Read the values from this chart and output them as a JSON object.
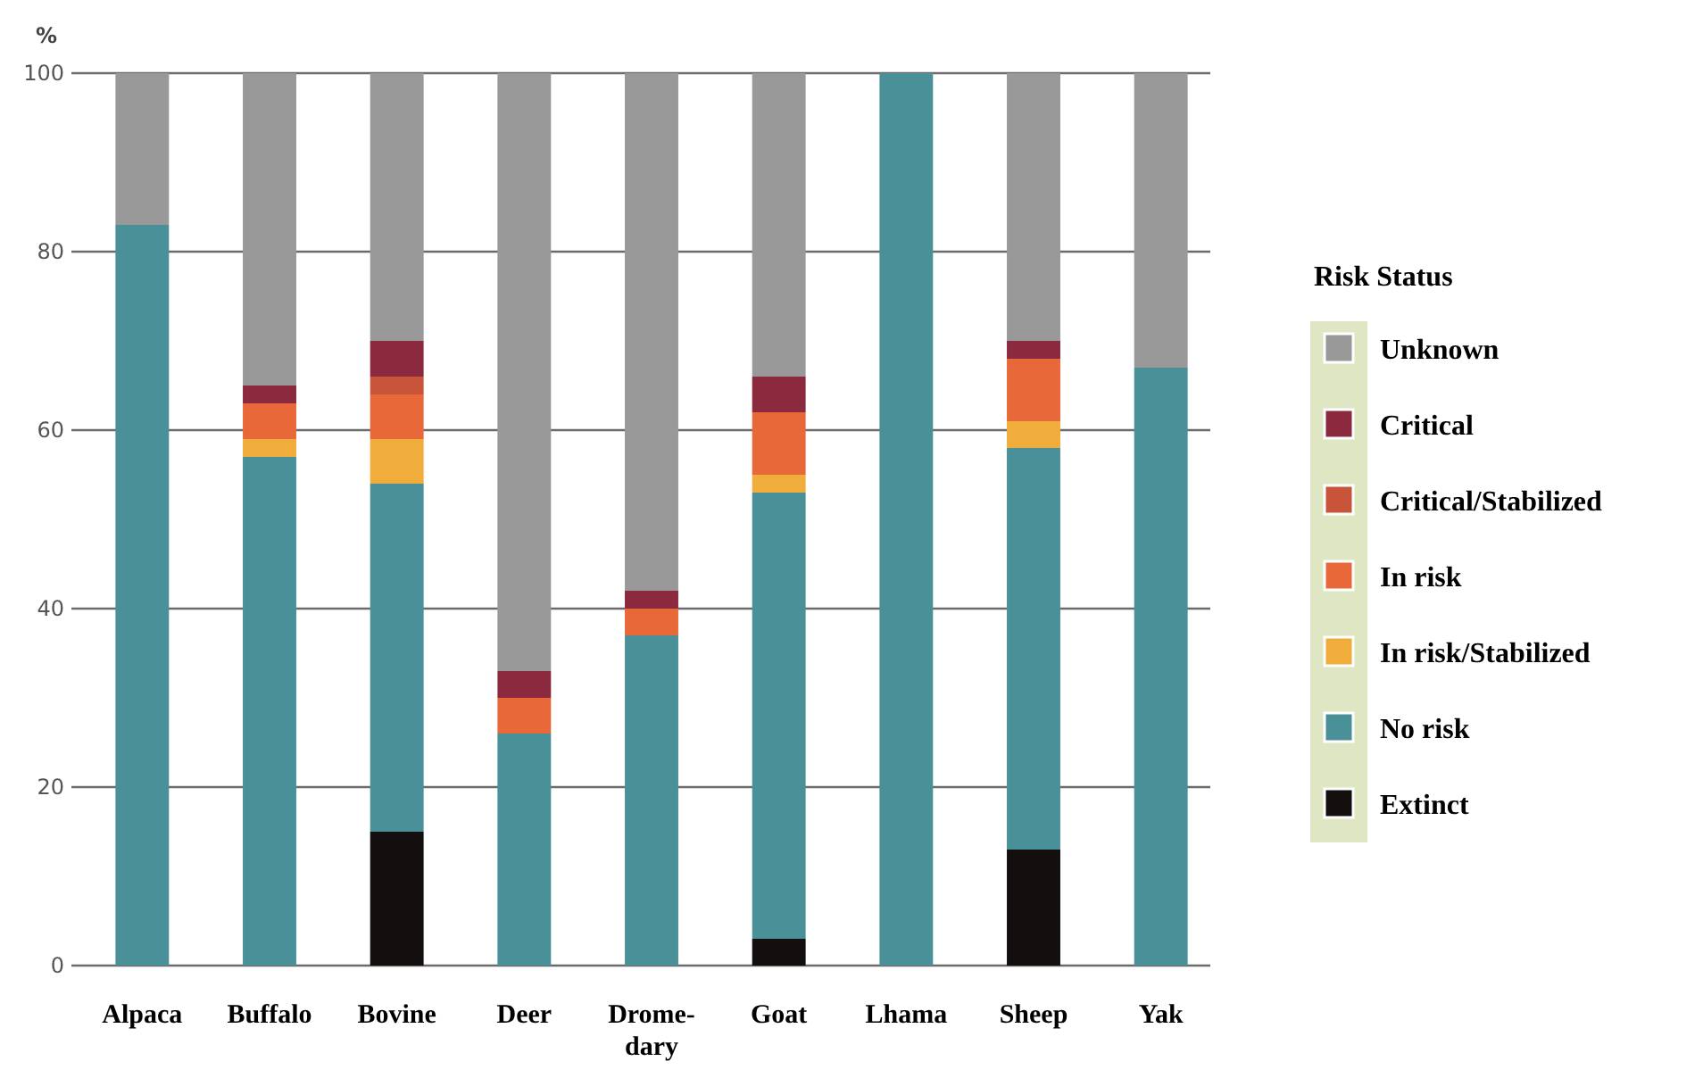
{
  "chart_data": {
    "type": "bar",
    "stacked": true,
    "ylabel": "%",
    "legend_title": "Risk Status",
    "legend": "right",
    "grid": "y",
    "categories": [
      "Alpaca",
      "Buffalo",
      "Bovine",
      "Deer",
      "Drome-dary",
      "Goat",
      "Lhama",
      "Sheep",
      "Yak"
    ],
    "ylim": [
      0,
      100
    ],
    "yticks": [
      0,
      20,
      40,
      60,
      80,
      100
    ],
    "series": [
      {
        "name": "Extinct",
        "color": "#140f0f",
        "values": [
          0,
          0,
          15,
          0,
          0,
          3,
          0,
          13,
          0
        ]
      },
      {
        "name": "No risk",
        "color": "#4a9099",
        "values": [
          83,
          57,
          39,
          26,
          37,
          50,
          100,
          45,
          67
        ]
      },
      {
        "name": "In risk/Stabilized",
        "color": "#f0ad3c",
        "values": [
          0,
          2,
          5,
          0,
          0,
          2,
          0,
          3,
          0
        ]
      },
      {
        "name": "In risk",
        "color": "#e8683a",
        "values": [
          0,
          4,
          5,
          4,
          3,
          7,
          0,
          7,
          0
        ]
      },
      {
        "name": "Critical/Stabilized",
        "color": "#c8553a",
        "values": [
          0,
          0,
          2,
          0,
          0,
          0,
          0,
          0,
          0
        ]
      },
      {
        "name": "Critical",
        "color": "#8b2a3f",
        "values": [
          0,
          2,
          4,
          3,
          2,
          4,
          0,
          2,
          0
        ]
      },
      {
        "name": "Unknown",
        "color": "#999999",
        "values": [
          17,
          35,
          30,
          67,
          58,
          34,
          0,
          30,
          33
        ]
      }
    ]
  }
}
